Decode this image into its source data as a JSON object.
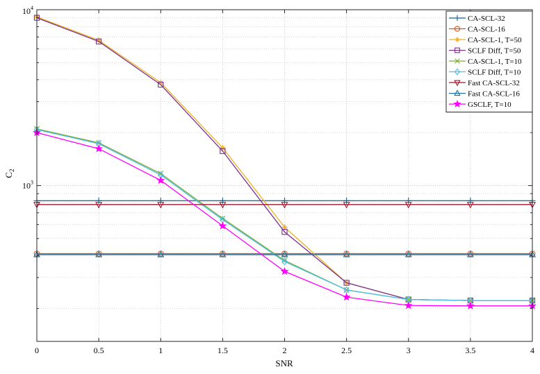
{
  "chart_data": {
    "type": "line",
    "xlabel": "SNR",
    "ylabel": "C",
    "ylabel_sub": "2",
    "x": [
      0,
      0.5,
      1,
      1.5,
      2,
      2.5,
      3,
      3.5,
      4
    ],
    "x_tick_labels": [
      "0",
      "0.5",
      "1",
      "1.5",
      "2",
      "2.5",
      "3",
      "3.5",
      "4"
    ],
    "xlim": [
      0,
      4
    ],
    "yscale": "log",
    "ylim": [
      130,
      10000
    ],
    "y_tick_labels": [
      {
        "value": 1000,
        "base": "10",
        "exp": "3"
      },
      {
        "value": 10000,
        "base": "10",
        "exp": "4"
      }
    ],
    "grid": true,
    "legend_position": "top-right",
    "series": [
      {
        "name": "CA-SCL-32",
        "color": "#0f5f8f",
        "marker": "plus",
        "values": [
          820,
          820,
          820,
          820,
          820,
          820,
          820,
          820,
          820
        ]
      },
      {
        "name": "CA-SCL-16",
        "color": "#d9541a",
        "marker": "circle",
        "values": [
          410,
          410,
          410,
          410,
          410,
          410,
          410,
          410,
          410
        ]
      },
      {
        "name": "CA-SCL-1, T=50",
        "color": "#edb120",
        "marker": "star",
        "values": [
          9100,
          6700,
          3850,
          1640,
          580,
          280,
          225,
          222,
          222
        ]
      },
      {
        "name": "SCLF Diff, T=50",
        "color": "#7e2f8e",
        "marker": "square",
        "values": [
          9000,
          6600,
          3750,
          1570,
          545,
          280,
          225,
          222,
          222
        ]
      },
      {
        "name": "CA-SCL-1, T=10",
        "color": "#77ac30",
        "marker": "x",
        "values": [
          2100,
          1750,
          1170,
          650,
          375,
          255,
          225,
          222,
          222
        ]
      },
      {
        "name": "SCLF Diff, T=10",
        "color": "#4dbeee",
        "marker": "diamond",
        "values": [
          2080,
          1730,
          1150,
          640,
          370,
          255,
          225,
          222,
          222
        ]
      },
      {
        "name": "Fast CA-SCL-32",
        "color": "#a2142f",
        "marker": "triangle-down",
        "values": [
          780,
          780,
          780,
          780,
          780,
          780,
          780,
          780,
          780
        ]
      },
      {
        "name": "Fast CA-SCL-16",
        "color": "#1f6f9f",
        "marker": "triangle-up",
        "values": [
          405,
          405,
          405,
          405,
          405,
          405,
          405,
          405,
          405
        ]
      },
      {
        "name": "GSCLF, T=10",
        "color": "#ff00ff",
        "marker": "pentagram",
        "values": [
          2000,
          1620,
          1070,
          590,
          325,
          232,
          208,
          207,
          207
        ]
      }
    ]
  }
}
